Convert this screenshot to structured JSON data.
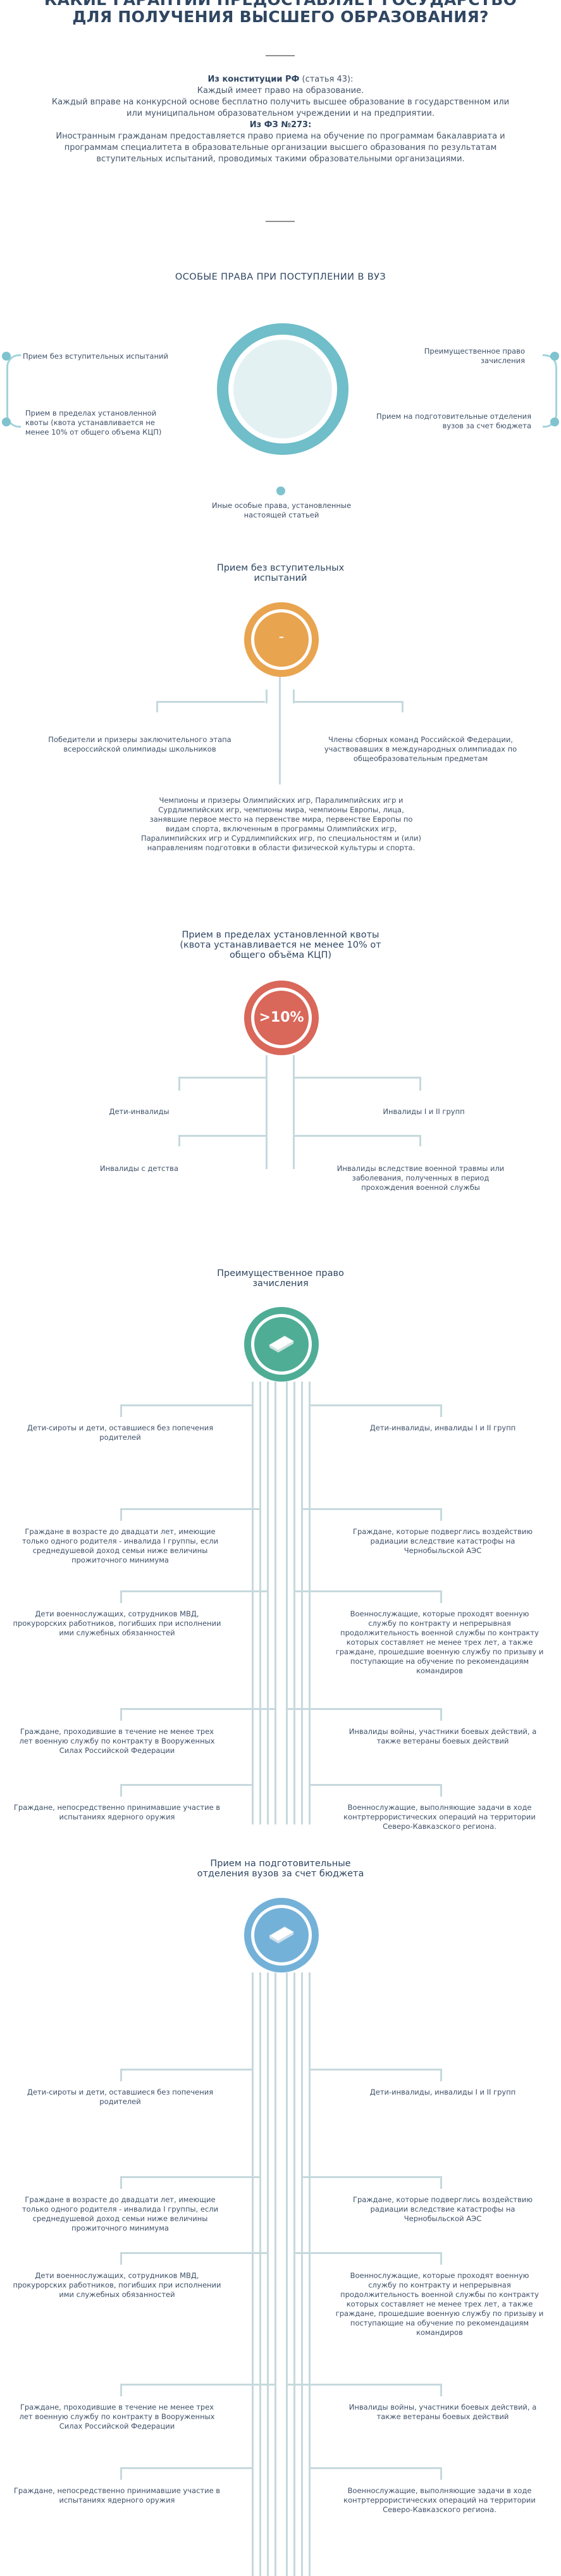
{
  "header": {
    "title_line1": "КАКИЕ ГАРАНТИИ ПРЕДОСТАВЛЯЕТ ГОСУДАРСТВО",
    "title_line2": "ДЛЯ ПОЛУЧЕНИЯ ВЫСШЕГО ОБРАЗОВАНИЯ?"
  },
  "intro": {
    "constitution_title": "Из конституции РФ",
    "constitution_ref": "(статья 43):",
    "constitution_line1": "Каждый имеет право на образование.",
    "constitution_line2": "Каждый вправе на конкурсной основе бесплатно получить высшее образование в государственном или",
    "constitution_line3": "или муниципальном образовательном учреждении и на предприятии.",
    "fz_title": "Из ФЗ №273:",
    "fz_line1": "Иностранным гражданам предоставляется право приема на обучение по программам бакалавриата и",
    "fz_line2": "программам специалитета в образовательные организации высшего образования по результатам",
    "fz_line3": "вступительных испытаний, проводимых такими образовательными организациями."
  },
  "special_rights": {
    "title": "ОСОБЫЕ ПРАВА ПРИ ПОСТУПЛЕНИИ В ВУЗ",
    "left_1": "Прием без вступительных испытаний",
    "left_2": "Прием в пределах установленной квоты (квота устанавливается не менее 10% от общего объема КЦП)",
    "right_1": "Преимущественное право зачисления",
    "right_2": "Прием на подготовительные отделения вузов за счет бюджета",
    "bottom": "Иные особые права, установленные настоящей статьей"
  },
  "no_exams": {
    "title_line1": "Прием без вступительных",
    "title_line2": "испытаний",
    "icon_glyph": "–",
    "left": "Победители и призеры заключительного этапа всероссийской олимпиады школьников",
    "right": "Члены сборных команд Российской Федерации, участвовавших в международных олимпиадах по общеобразовательным предметам",
    "bottom": "Чемпионы и призеры Олимпийских игр, Паралимпийских игр и Сурдлимпийских игр, чемпионы мира, чемпионы Европы, лица, занявшие первое место на первенстве мира, первенстве Европы по видам спорта, включенным в программы Олимпийских игр, Паралимпийских игр и Сурдлимпийских игр, по специальностям и (или) направлениям подготовки в области физической культуры и спорта."
  },
  "quota": {
    "title_line1": "Прием в пределах установленной квоты",
    "title_line2": "(квота устанавливается не менее 10% от",
    "title_line3": "общего объёма КЦП)",
    "badge": ">10%",
    "items": [
      "Дети-инвалиды",
      "Инвалиды I и II групп",
      "Инвалиды с детства",
      "Инвалиды вследствие военной травмы или заболевания, полученных в период прохождения военной службы"
    ]
  },
  "priority": {
    "title_line1": "Преимущественное право",
    "title_line2": "зачисления",
    "left": [
      "Дети-сироты и дети, оставшиеся без попечения родителей",
      "Граждане в возрасте до двадцати лет, имеющие только одного родителя - инвалида I группы, если среднедушевой доход семьи ниже величины прожиточного минимума",
      "Дети военнослужащих, сотрудников МВД, прокурорских работников, погибших при исполнении ими служебных обязанностей",
      "Граждане, проходившие в течение не менее трех лет военную службу по контракту в Вооруженных Силах Российской Федерации",
      "Граждане, непосредственно принимавшие участие в испытаниях ядерного оружия"
    ],
    "right": [
      "Дети-инвалиды, инвалиды I и II групп",
      "Граждане, которые подверглись воздействию радиации вследствие катастрофы на Чернобыльской АЭС",
      "Военнослужащие, которые проходят военную службу по контракту и непрерывная продолжительность военной службы по контракту которых составляет не менее трех лет, а также граждане, прошедшие военную службу по призыву и поступающие на обучение по рекомендациям командиров",
      "Инвалиды войны, участники боевых действий, а также ветераны боевых действий",
      "Военнослужащие, выполняющие задачи в ходе контртеррористических операций на территории Северо-Кавказского региона."
    ]
  },
  "prep": {
    "title_line1": "Прием на подготовительные",
    "title_line2": "отделения вузов за счет бюджета",
    "left": [
      "Дети-сироты и дети, оставшиеся без попечения родителей",
      "Граждане в возрасте до двадцати лет, имеющие только одного родителя - инвалида I группы, если среднедушевой доход семьи ниже величины прожиточного минимума",
      "Дети военнослужащих, сотрудников МВД, прокурорских работников, погибших при исполнении ими служебных обязанностей",
      "Граждане, проходившие в течение не менее трех лет военную службу по контракту в Вооруженных Силах Российской Федерации",
      "Граждане, непосредственно принимавшие участие в испытаниях ядерного оружия"
    ],
    "right": [
      "Дети-инвалиды, инвалиды I и II групп",
      "Граждане, которые подверглись воздействию радиации вследствие катастрофы на Чернобыльской АЭС",
      "Военнослужащие, которые проходят военную службу по контракту и непрерывная продолжительность военной службы по контракту которых составляет не менее трех лет, а также граждане, прошедшие военную службу по призыву и поступающие на обучение по рекомендациям командиров",
      "Инвалиды войны, участники боевых действий, а также ветераны боевых действий",
      "Военнослужащие, выполняющие задачи в ходе контртеррористических операций на территории Северо-Кавказского региона."
    ]
  },
  "colors": {
    "teal": "#6fbec9",
    "orange": "#e9a44f",
    "red": "#d9675a",
    "green": "#4fad96",
    "blue": "#74b1d8"
  }
}
